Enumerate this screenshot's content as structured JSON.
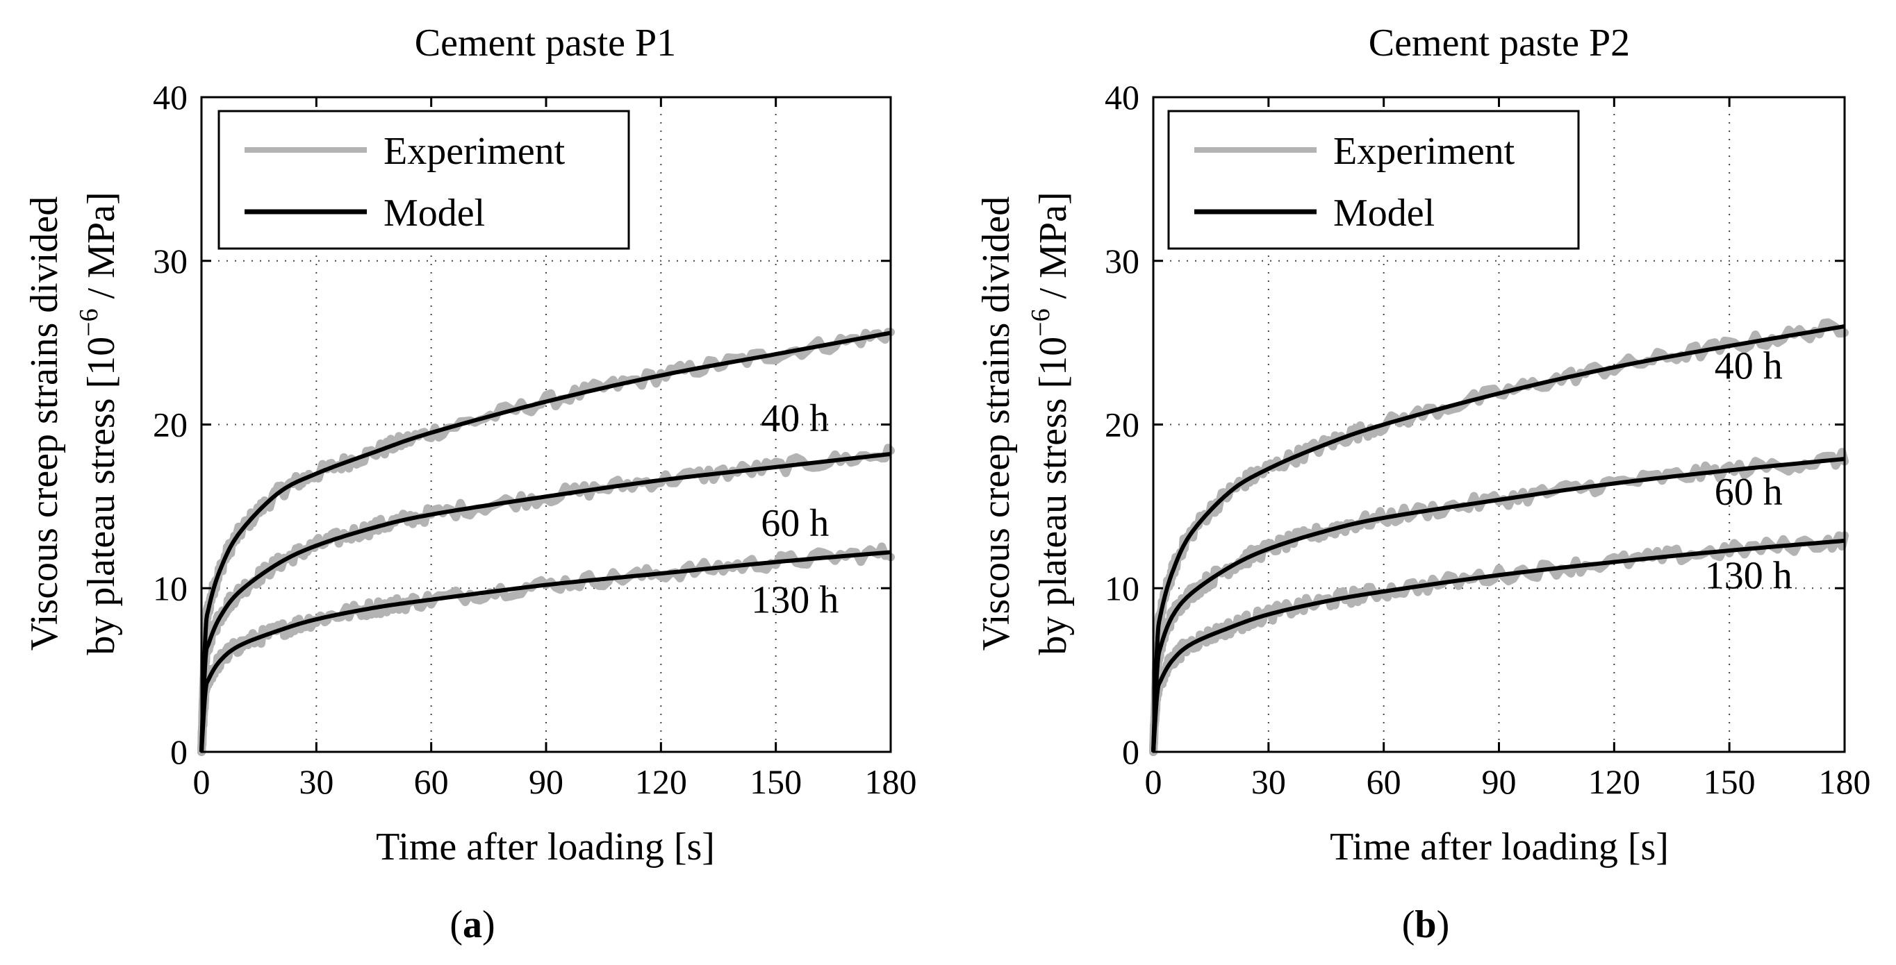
{
  "figure": {
    "captions": [
      "(a)",
      "(b)"
    ],
    "caption_letters": [
      "a",
      "b"
    ]
  },
  "chart_data": [
    {
      "type": "line",
      "title": "Cement paste P1",
      "xlabel": "Time after loading [s]",
      "ylabel_line1": "Viscous creep strains divided",
      "ylabel_line2": "by plateau stress [10",
      "ylabel_exp": "−6",
      "ylabel_unit": " / MPa]",
      "xlim": [
        0,
        180
      ],
      "ylim": [
        0,
        40
      ],
      "xticks": [
        0,
        30,
        60,
        90,
        120,
        150,
        180
      ],
      "yticks": [
        0,
        10,
        20,
        30,
        40
      ],
      "grid": true,
      "legend": {
        "position": "top-left",
        "entries": [
          "Experiment",
          "Model"
        ]
      },
      "series": [
        {
          "name": "40 h",
          "x": [
            0,
            1,
            2,
            5,
            10,
            20,
            30,
            45,
            60,
            90,
            120,
            150,
            180
          ],
          "values": [
            0,
            7.0,
            8.9,
            11.2,
            13.4,
            15.8,
            17.0,
            18.3,
            19.5,
            21.4,
            23.0,
            24.3,
            25.6
          ]
        },
        {
          "name": "60 h",
          "x": [
            0,
            1,
            2,
            5,
            10,
            20,
            30,
            45,
            60,
            90,
            120,
            150,
            180
          ],
          "values": [
            0,
            5.5,
            6.7,
            8.3,
            9.8,
            11.5,
            12.6,
            13.7,
            14.5,
            15.6,
            16.6,
            17.4,
            18.2
          ]
        },
        {
          "name": "130 h",
          "x": [
            0,
            1,
            2,
            5,
            10,
            20,
            30,
            45,
            60,
            90,
            120,
            150,
            180
          ],
          "values": [
            0,
            3.6,
            4.5,
            5.6,
            6.5,
            7.4,
            8.1,
            8.8,
            9.3,
            10.2,
            10.9,
            11.6,
            12.2
          ]
        }
      ],
      "labels": [
        {
          "text": "40 h",
          "x": 155,
          "y": 19.6
        },
        {
          "text": "60 h",
          "x": 155,
          "y": 13.2
        },
        {
          "text": "130 h",
          "x": 155,
          "y": 8.5
        }
      ]
    },
    {
      "type": "line",
      "title": "Cement paste P2",
      "xlabel": "Time after loading [s]",
      "ylabel_line1": "Viscous creep strains divided",
      "ylabel_line2": "by plateau stress [10",
      "ylabel_exp": "−6",
      "ylabel_unit": " / MPa]",
      "xlim": [
        0,
        180
      ],
      "ylim": [
        0,
        40
      ],
      "xticks": [
        0,
        30,
        60,
        90,
        120,
        150,
        180
      ],
      "yticks": [
        0,
        10,
        20,
        30,
        40
      ],
      "grid": true,
      "legend": {
        "position": "top-left",
        "entries": [
          "Experiment",
          "Model"
        ]
      },
      "series": [
        {
          "name": "40 h",
          "x": [
            0,
            1,
            2,
            5,
            10,
            20,
            30,
            45,
            60,
            90,
            120,
            150,
            180
          ],
          "values": [
            0,
            6.5,
            8.5,
            11.0,
            13.4,
            15.9,
            17.3,
            18.8,
            20.0,
            21.9,
            23.5,
            24.8,
            26.0
          ]
        },
        {
          "name": "60 h",
          "x": [
            0,
            1,
            2,
            5,
            10,
            20,
            30,
            45,
            60,
            90,
            120,
            150,
            180
          ],
          "values": [
            0,
            5.0,
            6.5,
            8.3,
            9.7,
            11.3,
            12.4,
            13.5,
            14.3,
            15.4,
            16.4,
            17.2,
            17.9
          ]
        },
        {
          "name": "130 h",
          "x": [
            0,
            1,
            2,
            5,
            10,
            20,
            30,
            45,
            60,
            90,
            120,
            150,
            180
          ],
          "values": [
            0,
            3.5,
            4.4,
            5.6,
            6.6,
            7.6,
            8.4,
            9.2,
            9.8,
            10.8,
            11.6,
            12.3,
            12.9
          ]
        }
      ],
      "labels": [
        {
          "text": "40 h",
          "x": 155,
          "y": 22.8
        },
        {
          "text": "60 h",
          "x": 155,
          "y": 15.1
        },
        {
          "text": "130 h",
          "x": 155,
          "y": 10.0
        }
      ]
    }
  ],
  "colors": {
    "experiment": "#b3b3b3",
    "model": "#000000",
    "axes": "#000000",
    "grid": "#444444"
  }
}
